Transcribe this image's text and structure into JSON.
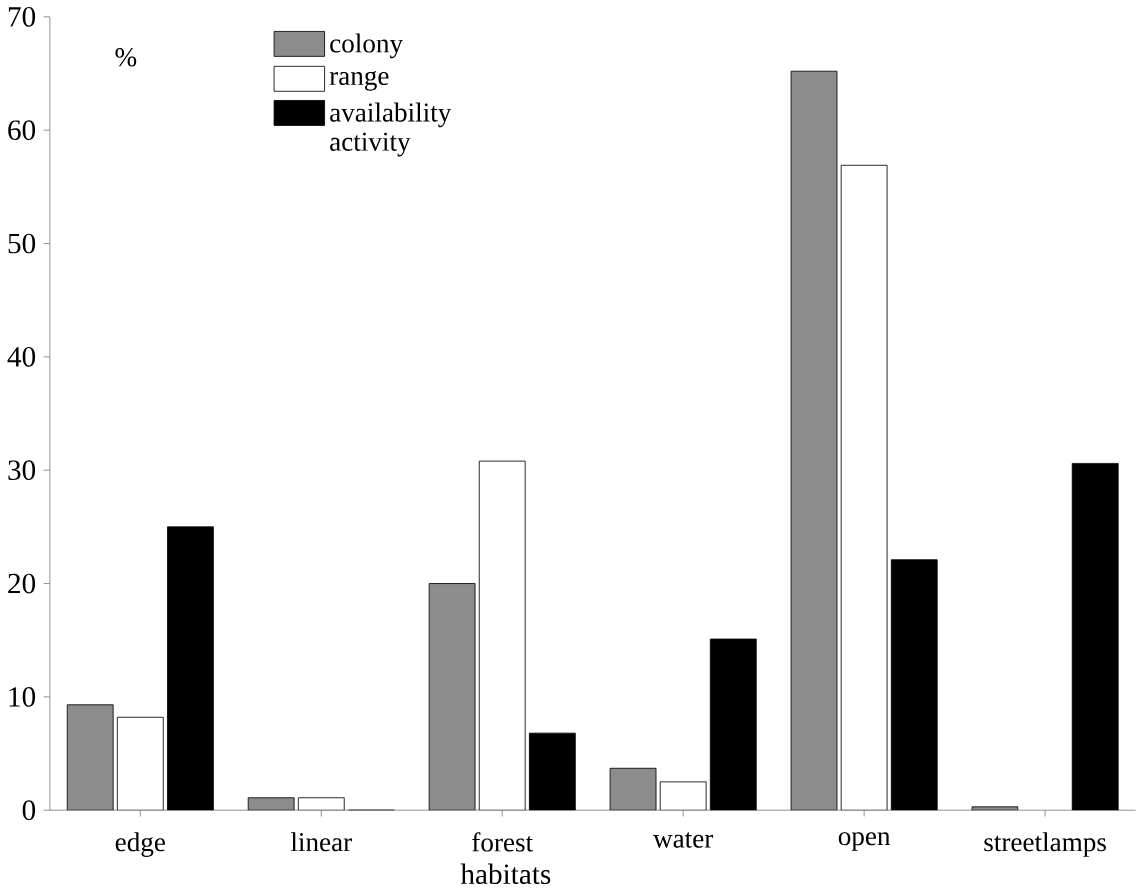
{
  "chart_data": {
    "type": "bar",
    "xlabel": "habitats",
    "ylabel": "%",
    "categories": [
      "edge",
      "linear",
      "forest",
      "water",
      "open",
      "streetlamps"
    ],
    "series": [
      {
        "name": "colony",
        "color": "#8c8c8c",
        "values": [
          9.3,
          1.1,
          20,
          3.7,
          65.2,
          0.3
        ]
      },
      {
        "name": "range",
        "color": "#ffffff",
        "values": [
          8.2,
          1.1,
          30.8,
          2.5,
          56.9,
          null
        ]
      },
      {
        "name": "availability activity",
        "color": "#000000",
        "values": [
          25,
          0,
          6.8,
          15.1,
          22.1,
          30.6
        ]
      }
    ],
    "ylim": [
      0,
      70
    ],
    "yticks": [
      0,
      10,
      20,
      30,
      40,
      50,
      60,
      70
    ],
    "legend": "top left",
    "grid": false
  }
}
